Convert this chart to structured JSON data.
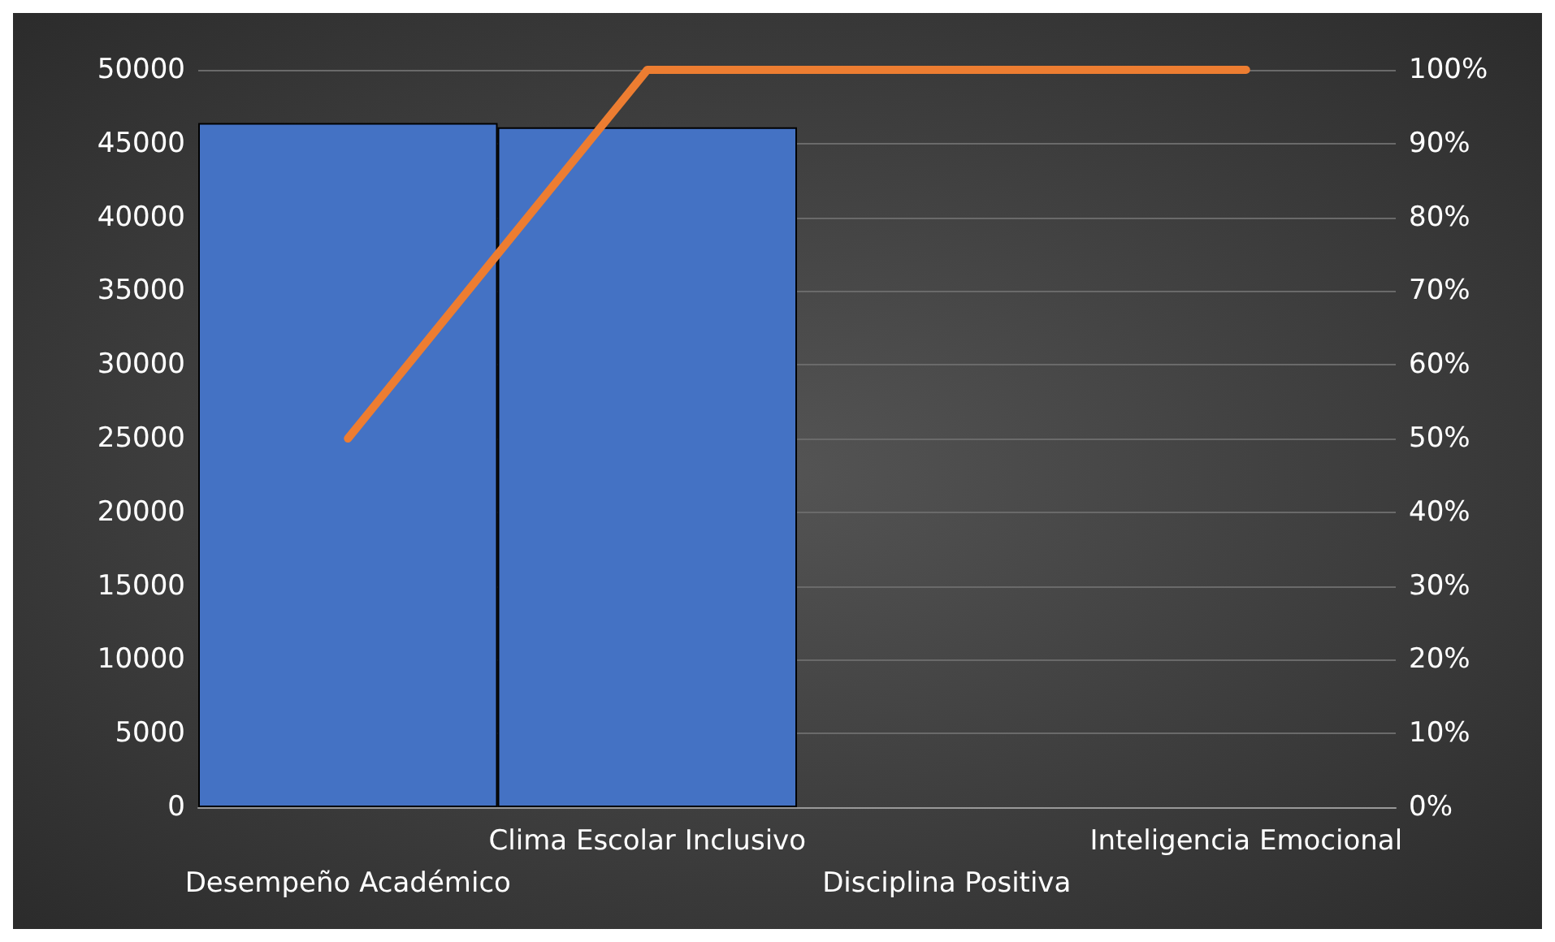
{
  "chart_data": {
    "type": "bar",
    "categories": [
      "Desempeño Académico",
      "Clima Escolar Inclusivo",
      "Disciplina Positiva",
      "Inteligencia Emocional"
    ],
    "series": [
      {
        "color": "#4472c4",
        "values": [
          46400,
          46100,
          0,
          0
        ]
      },
      {
        "type": "line",
        "axis": "y2",
        "color": "#ed7d31",
        "values": [
          50,
          100,
          100,
          100
        ]
      }
    ],
    "ylim": [
      0,
      50000
    ],
    "yticks": [
      0,
      5000,
      10000,
      15000,
      20000,
      25000,
      30000,
      35000,
      40000,
      45000,
      50000
    ],
    "y2lim": [
      0,
      100
    ],
    "y2ticks": [
      {
        "value": 0,
        "label": "0%"
      },
      {
        "value": 10,
        "label": "10%"
      },
      {
        "value": 20,
        "label": "20%"
      },
      {
        "value": 30,
        "label": "30%"
      },
      {
        "value": 40,
        "label": "40%"
      },
      {
        "value": 50,
        "label": "50%"
      },
      {
        "value": 60,
        "label": "60%"
      },
      {
        "value": 70,
        "label": "70%"
      },
      {
        "value": 80,
        "label": "80%"
      },
      {
        "value": 90,
        "label": "90%"
      },
      {
        "value": 100,
        "label": "100%"
      }
    ],
    "grid": "y",
    "marker": "none"
  }
}
